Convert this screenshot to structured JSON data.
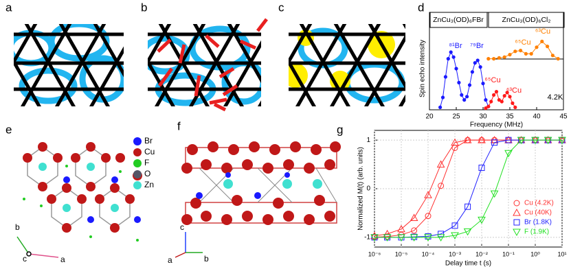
{
  "panel_labels": [
    "a",
    "b",
    "c",
    "d",
    "e",
    "f",
    "g"
  ],
  "structure_legend": [
    "Br",
    "Cu",
    "F",
    "O",
    "Zn"
  ],
  "axes_e": [
    "b",
    "c",
    "a"
  ],
  "axes_f": [
    "c",
    "a",
    "b"
  ],
  "chart_data": [
    {
      "type": "line",
      "xlabel": "Frequency (MHz)",
      "ylabel": "Spin echo intensity",
      "compounds": [
        "ZnCu₃(OD)₆FBr",
        "ZnCu₃(OD)₆Cl₂"
      ],
      "annotations": [
        "⁸¹Br",
        "⁷⁹Br",
        "⁶⁵Cu",
        "⁶³Cu",
        "⁶⁵Cu",
        "⁶³Cu",
        "4.2K"
      ],
      "xlim": [
        20,
        45
      ],
      "xticks": [
        20,
        25,
        30,
        35,
        40,
        45
      ],
      "ylim": [
        0,
        1
      ],
      "series": [
        {
          "color": "#1a1aff",
          "x": [
            22,
            22.5,
            23,
            23.5,
            24,
            24.5,
            25,
            25.5,
            26,
            26.5,
            27,
            27.5,
            28,
            28.5,
            29,
            29.5,
            30,
            30.5,
            31
          ],
          "values": [
            0.03,
            0.15,
            0.4,
            0.62,
            0.7,
            0.64,
            0.5,
            0.33,
            0.18,
            0.12,
            0.16,
            0.3,
            0.46,
            0.57,
            0.6,
            0.52,
            0.32,
            0.12,
            0.04
          ]
        },
        {
          "color": "#ff1a1a",
          "x": [
            30.5,
            31,
            31.5,
            32,
            32.5,
            33,
            33.5,
            34,
            34.5,
            35,
            35.5,
            36
          ],
          "values": [
            0.02,
            0.04,
            0.1,
            0.18,
            0.22,
            0.12,
            0.1,
            0.17,
            0.21,
            0.16,
            0.08,
            0.03
          ]
        },
        {
          "color": "#ff8000",
          "x": [
            31,
            32,
            33,
            34,
            35,
            36,
            37,
            38,
            39,
            40,
            41,
            42,
            43,
            44
          ],
          "values": [
            0.62,
            0.62,
            0.63,
            0.64,
            0.67,
            0.71,
            0.72,
            0.68,
            0.68,
            0.76,
            0.83,
            0.77,
            0.66,
            0.62
          ]
        }
      ]
    },
    {
      "type": "scatter",
      "xlabel": "Delay time t (s)",
      "ylabel": "Normalized M(t) (arb. units)",
      "log_x": true,
      "xlim": [
        1e-06,
        10
      ],
      "xticks": [
        {
          "value": 1e-06,
          "label": "10⁻⁶"
        },
        {
          "value": 1e-05,
          "label": "10⁻⁵"
        },
        {
          "value": 0.0001,
          "label": "10⁻⁴"
        },
        {
          "value": 0.001,
          "label": "10⁻³"
        },
        {
          "value": 0.01,
          "label": "10⁻²"
        },
        {
          "value": 0.1,
          "label": "10⁻¹"
        },
        {
          "value": 1,
          "label": "10⁰"
        },
        {
          "value": 10,
          "label": "10¹"
        }
      ],
      "ylim": [
        -1.2,
        1.2
      ],
      "yticks": [
        -1,
        0,
        1
      ],
      "x": [
        1e-06,
        3e-06,
        1e-05,
        3e-05,
        0.0001,
        0.0003,
        0.001,
        0.003,
        0.01,
        0.03,
        0.1,
        0.3,
        1,
        3,
        10
      ],
      "series": [
        {
          "name": "Cu (4.2K)",
          "color": "#ff3030",
          "marker": "circle",
          "values": [
            -0.995,
            -0.985,
            -0.95,
            -0.86,
            -0.56,
            0.06,
            0.84,
            1,
            1,
            1,
            1,
            1,
            1,
            1,
            1
          ]
        },
        {
          "name": "Cu (40K)",
          "color": "#ff3030",
          "marker": "triangle",
          "values": [
            -0.97,
            -0.93,
            -0.83,
            -0.6,
            -0.13,
            0.5,
            0.95,
            1,
            1,
            1,
            1,
            1,
            1,
            1,
            1
          ]
        },
        {
          "name": "Br (1.8K)",
          "color": "#2020ff",
          "marker": "square",
          "values": [
            -1,
            -1,
            -1,
            -0.99,
            -0.98,
            -0.93,
            -0.76,
            -0.37,
            0.43,
            0.95,
            1,
            1,
            1,
            1,
            1
          ]
        },
        {
          "name": "F (1.9K)",
          "color": "#20e020",
          "marker": "triangle-down",
          "values": [
            -1,
            -1,
            -1,
            -1,
            -1,
            -1,
            -0.96,
            -0.88,
            -0.64,
            -0.1,
            0.73,
            1,
            1,
            1,
            1
          ]
        }
      ]
    }
  ]
}
